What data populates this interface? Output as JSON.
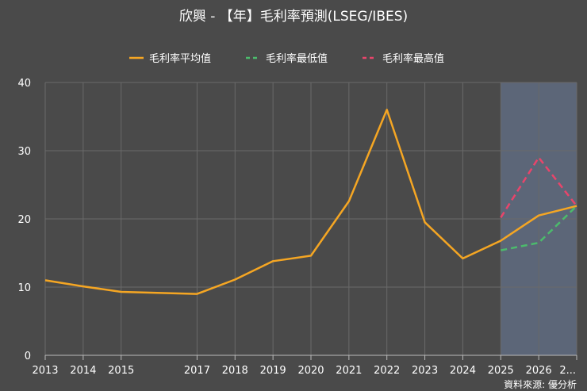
{
  "chart_data": {
    "type": "line",
    "title": "欣興 - 【年】毛利率預測(LSEG/IBES)",
    "source": "資料來源: 優分析",
    "ylim": [
      0,
      40
    ],
    "y_ticks": [
      "0",
      "10",
      "20",
      "30",
      "40"
    ],
    "x_ticks": [
      "2013",
      "2014",
      "2015",
      "2017",
      "2018",
      "2019",
      "2020",
      "2021",
      "2022",
      "2023",
      "2024",
      "2025",
      "2026",
      "2..."
    ],
    "grid": true,
    "legend_position": "top-center",
    "forecast_region": {
      "from": 2025,
      "to": 2027,
      "color": "#5c6678"
    },
    "series": [
      {
        "name": "毛利率平均值",
        "color": "#f5a623",
        "dash": "solid",
        "points": [
          {
            "x": 2013,
            "y": 11.0
          },
          {
            "x": 2014,
            "y": 10.1
          },
          {
            "x": 2015,
            "y": 9.3
          },
          {
            "x": 2017,
            "y": 9.0
          },
          {
            "x": 2018,
            "y": 11.1
          },
          {
            "x": 2019,
            "y": 13.8
          },
          {
            "x": 2020,
            "y": 14.6
          },
          {
            "x": 2021,
            "y": 22.6
          },
          {
            "x": 2022,
            "y": 36.0
          },
          {
            "x": 2023,
            "y": 19.5
          },
          {
            "x": 2024,
            "y": 14.2
          },
          {
            "x": 2025,
            "y": 16.8
          },
          {
            "x": 2026,
            "y": 20.5
          },
          {
            "x": 2027,
            "y": 21.9
          }
        ]
      },
      {
        "name": "毛利率最低值",
        "color": "#4cbb6c",
        "dash": "dashed",
        "points": [
          {
            "x": 2025,
            "y": 15.4
          },
          {
            "x": 2026,
            "y": 16.5
          },
          {
            "x": 2027,
            "y": 21.9
          }
        ]
      },
      {
        "name": "毛利率最高值",
        "color": "#e8456b",
        "dash": "dashed",
        "points": [
          {
            "x": 2025,
            "y": 20.2
          },
          {
            "x": 2026,
            "y": 29.0
          },
          {
            "x": 2027,
            "y": 21.9
          }
        ]
      }
    ]
  }
}
